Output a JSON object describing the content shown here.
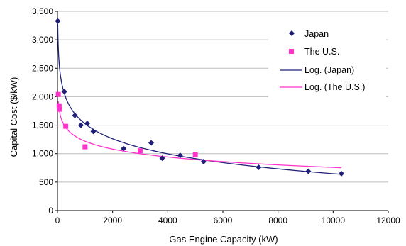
{
  "chart_data": {
    "type": "scatter",
    "title": "",
    "xlabel": "Gas Engine Capacity (kW)",
    "ylabel": "Capital Cost ($/kW)",
    "xlim": [
      0,
      12000
    ],
    "ylim": [
      0,
      3500
    ],
    "x_ticks": [
      0,
      2000,
      4000,
      6000,
      8000,
      10000,
      12000
    ],
    "y_ticks": [
      0,
      500,
      1000,
      1500,
      2000,
      2500,
      3000,
      3500
    ],
    "x_tick_labels": [
      "0",
      "2000",
      "4000",
      "6000",
      "8000",
      "10000",
      "12000"
    ],
    "y_tick_labels": [
      "0",
      "500",
      "1,000",
      "1,500",
      "2,000",
      "2,500",
      "3,000",
      "3,500"
    ],
    "grid": "horizontal",
    "legend_position": "top-right",
    "series": [
      {
        "name": "Japan",
        "kind": "scatter",
        "marker": "diamond",
        "color": "#1f1f7a",
        "points": [
          [
            10,
            3330
          ],
          [
            250,
            2090
          ],
          [
            630,
            1670
          ],
          [
            850,
            1500
          ],
          [
            1080,
            1530
          ],
          [
            1300,
            1390
          ],
          [
            2400,
            1090
          ],
          [
            3400,
            1190
          ],
          [
            3800,
            920
          ],
          [
            4450,
            970
          ],
          [
            5300,
            860
          ],
          [
            7300,
            760
          ],
          [
            9100,
            690
          ],
          [
            10300,
            650
          ]
        ]
      },
      {
        "name": "The U.S.",
        "kind": "scatter",
        "marker": "square",
        "color": "#ff33cc",
        "points": [
          [
            30,
            2040
          ],
          [
            60,
            1840
          ],
          [
            80,
            1780
          ],
          [
            300,
            1480
          ],
          [
            1000,
            1120
          ],
          [
            3000,
            1050
          ],
          [
            5000,
            980
          ]
        ]
      },
      {
        "name": "Log. (Japan)",
        "kind": "line",
        "color": "#1f1f7a",
        "fit": {
          "type": "log",
          "a": -381,
          "b": 4157
        },
        "x_range": [
          10,
          10300
        ]
      },
      {
        "name": "Log. (The U.S.)",
        "kind": "line",
        "color": "#ff33cc",
        "fit": {
          "type": "log",
          "a": -200,
          "b": 2600
        },
        "x_range": [
          30,
          10300
        ]
      }
    ]
  }
}
